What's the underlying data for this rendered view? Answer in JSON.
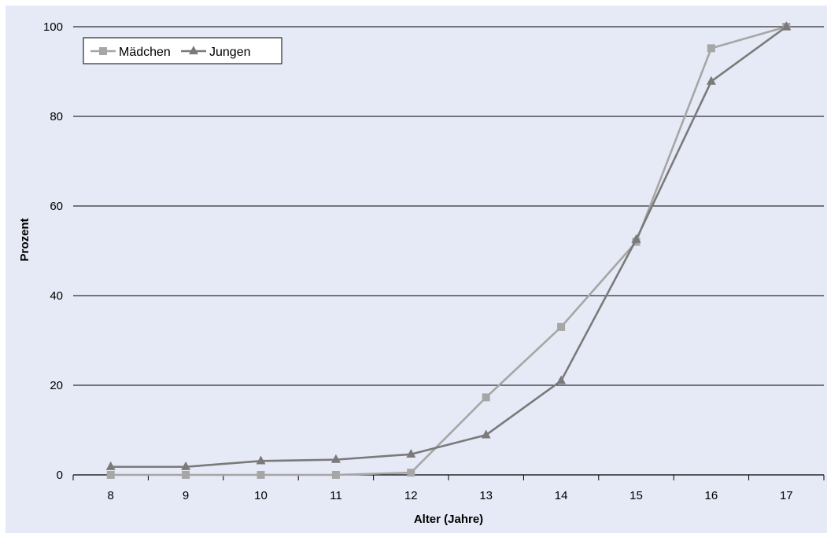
{
  "colors": {
    "panel_background": "#e6eaf6",
    "gridline": "#000000",
    "axis": "#000000",
    "legend_background": "#ffffff",
    "legend_border": "#000000"
  },
  "chart_data": {
    "type": "line",
    "xlabel": "Alter (Jahre)",
    "ylabel": "Prozent",
    "x": [
      8,
      9,
      10,
      11,
      12,
      13,
      14,
      15,
      16,
      17
    ],
    "ylim": [
      0,
      100
    ],
    "yticks": [
      0,
      20,
      40,
      60,
      80,
      100
    ],
    "grid": true,
    "legend_position": "top-left",
    "series": [
      {
        "name": "Mädchen",
        "marker": "square",
        "color": "#a6a6a6",
        "values": [
          0,
          0,
          0,
          0,
          0.5,
          17.3,
          33,
          52,
          95.2,
          100
        ]
      },
      {
        "name": "Jungen",
        "marker": "triangle",
        "color": "#7a7a7a",
        "values": [
          1.8,
          1.8,
          3.1,
          3.4,
          4.6,
          8.9,
          21,
          52.5,
          87.8,
          100
        ]
      }
    ]
  }
}
